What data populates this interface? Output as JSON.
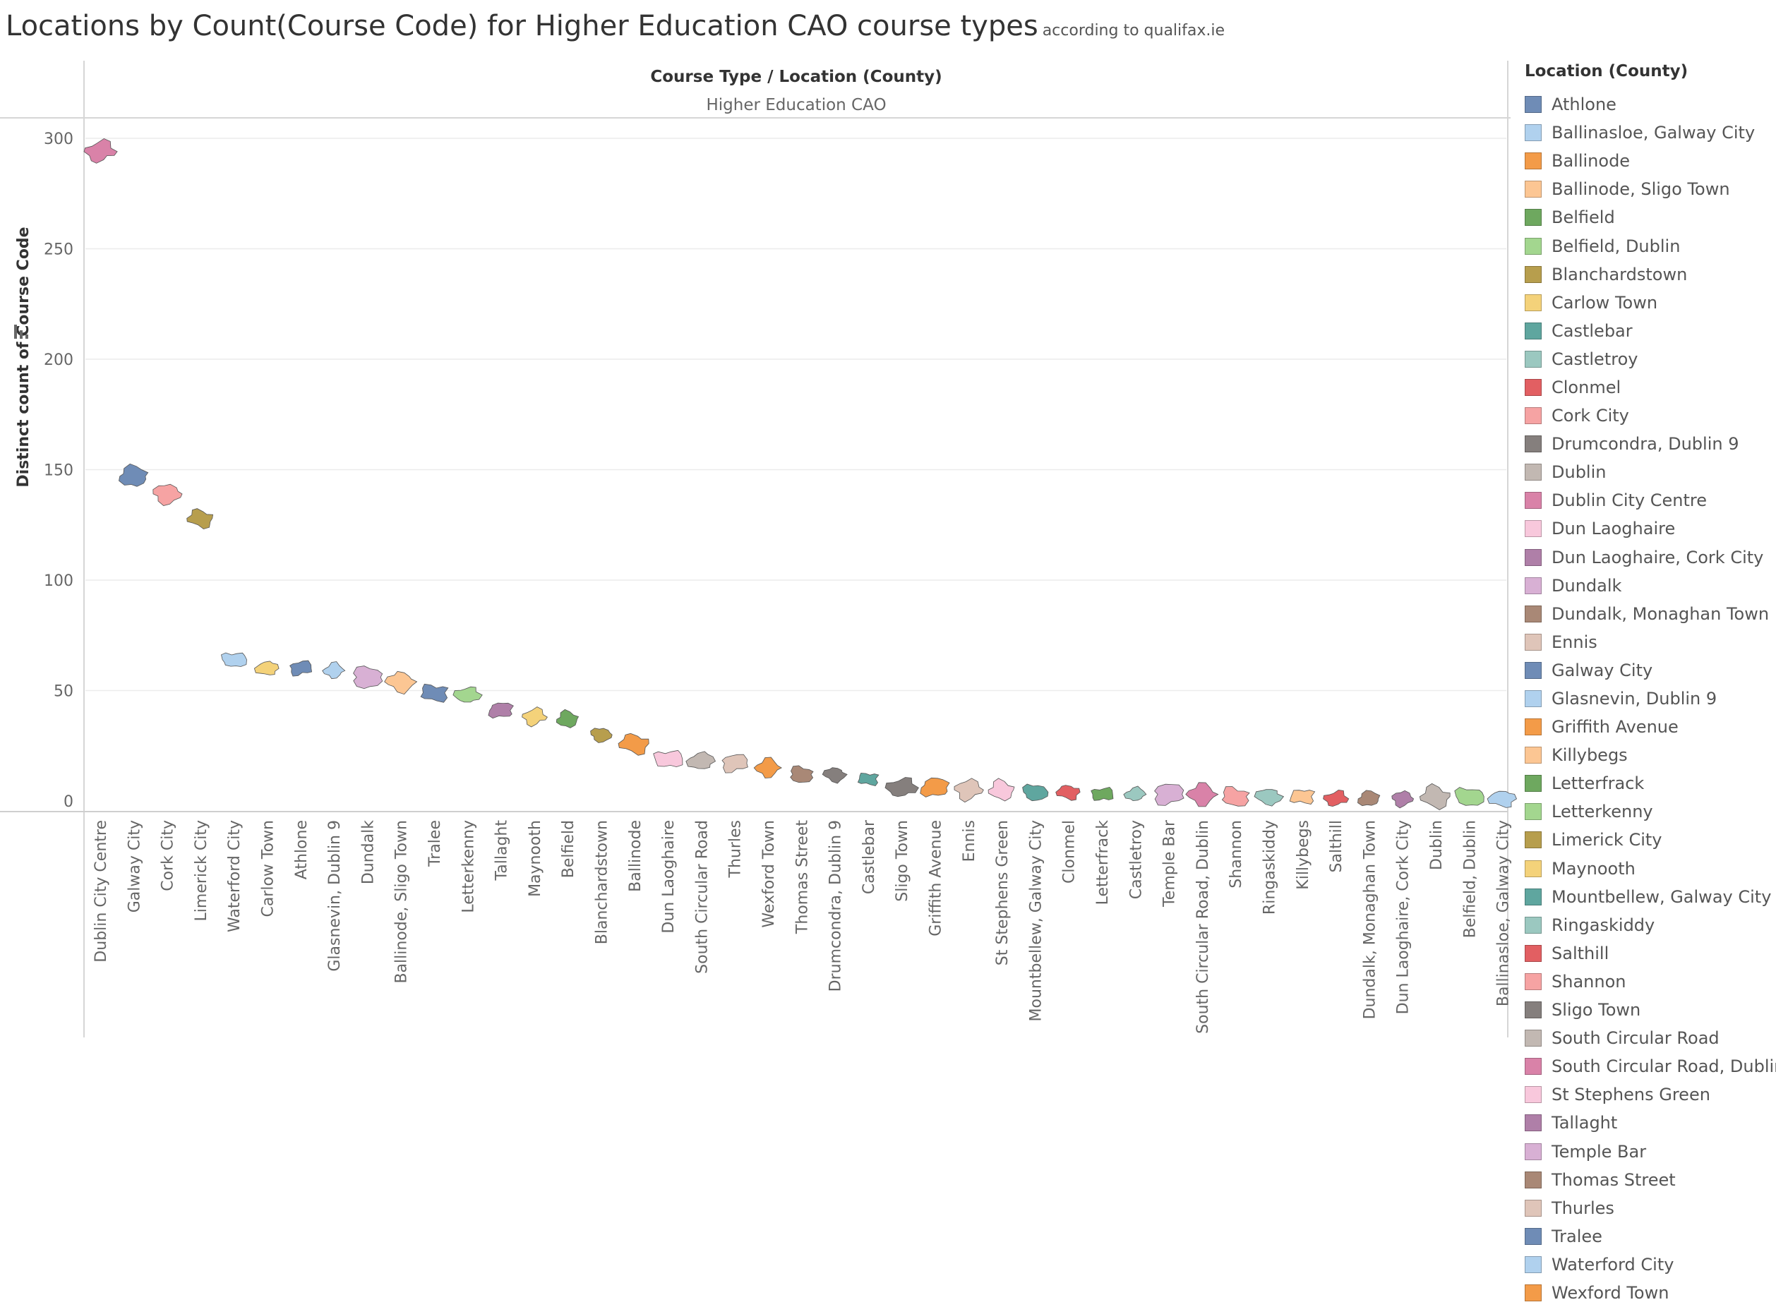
{
  "title": {
    "main": "Locations by Count(Course Code) for Higher Education CAO course types",
    "sub": "according to qualifax.ie"
  },
  "header": {
    "row_label": "Course Type  /  Location (County)",
    "column_label": "Higher Education CAO"
  },
  "sort_icon": "sort-descending-icon",
  "legend": {
    "title": "Location (County)",
    "items": [
      {
        "label": "Athlone",
        "color": "#6f8cb6"
      },
      {
        "label": "Ballinasloe, Galway City",
        "color": "#b0d1ee"
      },
      {
        "label": "Ballinode",
        "color": "#f39b48"
      },
      {
        "label": "Ballinode, Sligo Town",
        "color": "#fcc693"
      },
      {
        "label": "Belfield",
        "color": "#6ea85f"
      },
      {
        "label": "Belfield, Dublin",
        "color": "#a3d68f"
      },
      {
        "label": "Blanchardstown",
        "color": "#b79e4d"
      },
      {
        "label": "Carlow Town",
        "color": "#f4d27a"
      },
      {
        "label": "Castlebar",
        "color": "#5fa69f"
      },
      {
        "label": "Castletroy",
        "color": "#9bc8c0"
      },
      {
        "label": "Clonmel",
        "color": "#e25f62"
      },
      {
        "label": "Cork City",
        "color": "#f6a3a3"
      },
      {
        "label": "Drumcondra, Dublin 9",
        "color": "#857f7d"
      },
      {
        "label": "Dublin",
        "color": "#c2b8b2"
      },
      {
        "label": "Dublin City Centre",
        "color": "#d982a8"
      },
      {
        "label": "Dun Laoghaire",
        "color": "#f8c8dc"
      },
      {
        "label": "Dun Laoghaire, Cork City",
        "color": "#af7fa8"
      },
      {
        "label": "Dundalk",
        "color": "#d8b0d4"
      },
      {
        "label": "Dundalk, Monaghan Town",
        "color": "#a98876"
      },
      {
        "label": "Ennis",
        "color": "#dfc5b9"
      },
      {
        "label": "Galway City",
        "color": "#6f8cb6"
      },
      {
        "label": "Glasnevin, Dublin 9",
        "color": "#b0d1ee"
      },
      {
        "label": "Griffith Avenue",
        "color": "#f39b48"
      },
      {
        "label": "Killybegs",
        "color": "#fcc693"
      },
      {
        "label": "Letterfrack",
        "color": "#6ea85f"
      },
      {
        "label": "Letterkenny",
        "color": "#a3d68f"
      },
      {
        "label": "Limerick City",
        "color": "#b79e4d"
      },
      {
        "label": "Maynooth",
        "color": "#f4d27a"
      },
      {
        "label": "Mountbellew, Galway City",
        "color": "#5fa69f"
      },
      {
        "label": "Ringaskiddy",
        "color": "#9bc8c0"
      },
      {
        "label": "Salthill",
        "color": "#e25f62"
      },
      {
        "label": "Shannon",
        "color": "#f6a3a3"
      },
      {
        "label": "Sligo Town",
        "color": "#857f7d"
      },
      {
        "label": "South Circular Road",
        "color": "#c2b8b2"
      },
      {
        "label": "South Circular Road, Dublin",
        "color": "#d982a8"
      },
      {
        "label": "St Stephens Green",
        "color": "#f8c8dc"
      },
      {
        "label": "Tallaght",
        "color": "#af7fa8"
      },
      {
        "label": "Temple Bar",
        "color": "#d8b0d4"
      },
      {
        "label": "Thomas Street",
        "color": "#a98876"
      },
      {
        "label": "Thurles",
        "color": "#dfc5b9"
      },
      {
        "label": "Tralee",
        "color": "#6f8cb6"
      },
      {
        "label": "Waterford City",
        "color": "#b0d1ee"
      },
      {
        "label": "Wexford Town",
        "color": "#f39b48"
      }
    ]
  },
  "chart_data": {
    "type": "scatter",
    "title": "Locations by Count(Course Code) for Higher Education CAO course types",
    "ylabel": "Distinct count of Course Code",
    "ylim": [
      0,
      300
    ],
    "yticks": [
      0,
      50,
      100,
      150,
      200,
      250,
      300
    ],
    "grid": true,
    "legend_position": "right",
    "categories": [
      "Dublin City Centre",
      "Galway City",
      "Cork City",
      "Limerick City",
      "Waterford City",
      "Carlow Town",
      "Athlone",
      "Glasnevin, Dublin 9",
      "Dundalk",
      "Ballinode, Sligo Town",
      "Tralee",
      "Letterkenny",
      "Tallaght",
      "Maynooth",
      "Belfield",
      "Blanchardstown",
      "Ballinode",
      "Dun Laoghaire",
      "South Circular Road",
      "Thurles",
      "Wexford Town",
      "Thomas Street",
      "Drumcondra, Dublin 9",
      "Castlebar",
      "Sligo Town",
      "Griffith Avenue",
      "Ennis",
      "St Stephens Green",
      "Mountbellew, Galway City",
      "Clonmel",
      "Letterfrack",
      "Castletroy",
      "Temple Bar",
      "South Circular Road, Dublin",
      "Shannon",
      "Ringaskiddy",
      "Killybegs",
      "Salthill",
      "Dundalk, Monaghan Town",
      "Dun Laoghaire, Cork City",
      "Dublin",
      "Belfield, Dublin",
      "Ballinasloe, Galway City"
    ],
    "values": [
      294,
      147,
      139,
      128,
      64,
      60,
      60,
      59,
      56,
      54,
      49,
      48,
      41,
      38,
      37,
      30,
      26,
      19,
      18,
      17,
      15,
      12,
      12,
      10,
      6,
      6,
      5,
      5,
      4,
      4,
      3,
      3,
      3,
      3,
      2,
      2,
      2,
      1,
      1,
      1,
      2,
      2,
      1
    ],
    "mark_shape": "county map outline"
  }
}
